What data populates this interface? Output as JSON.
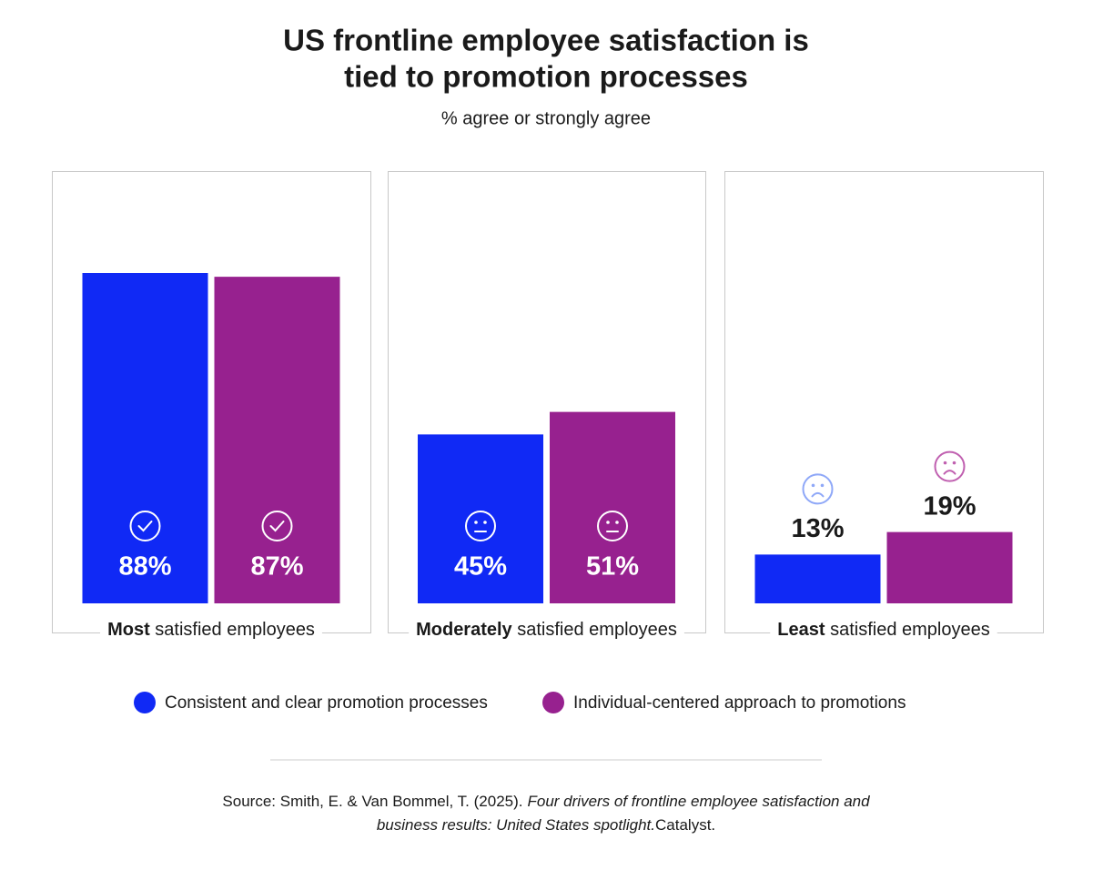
{
  "chart_data": {
    "type": "bar",
    "title": [
      "US frontline employee satisfaction is",
      "tied to promotion processes"
    ],
    "subtitle": "% agree or strongly agree",
    "categories": [
      "Most satisfied employees",
      "Moderately satisfied employees",
      "Least satisfied employees"
    ],
    "series": [
      {
        "name": "Consistent and clear promotion processes",
        "color": "#1029f5",
        "values": [
          88,
          45,
          13
        ],
        "value_labels": [
          "88%",
          "45%",
          "13%"
        ]
      },
      {
        "name": "Individual-centered approach to promotions",
        "color": "#97218f",
        "values": [
          87,
          51,
          19
        ],
        "value_labels": [
          "87%",
          "51%",
          "19%"
        ]
      }
    ],
    "ylim": [
      0,
      100
    ],
    "source": [
      [
        "Source: Smith, E. & Van Bommel, T. (2025).",
        "Four drivers of frontline employee satisfaction and"
      ],
      [
        "business results: United States spotlight.",
        "Catalyst."
      ]
    ]
  }
}
